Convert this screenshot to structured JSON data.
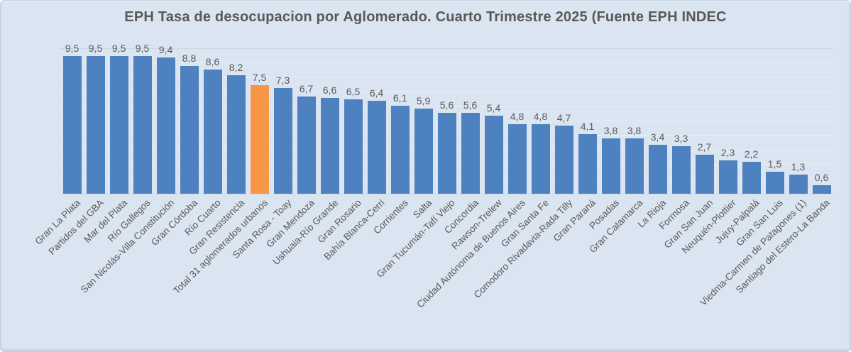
{
  "chart_data": {
    "type": "bar",
    "title": "EPH Tasa de desocupacion por Aglomerado. Cuarto Trimestre 2025 (Fuente EPH INDEC",
    "categories": [
      "Gran La Plata",
      "Partidos del GBA",
      "Mar del Plata",
      "Río Gallegos",
      "San Nicolás-Villa Constitución",
      "Gran Córdoba",
      "Río Cuarto",
      "Gran Resistencia",
      "Total 31 aglomerados urbanos",
      "Santa Rosa - Toay",
      "Gran Mendoza",
      "Ushuaia-Río Grande",
      "Gran Rosario",
      "Bahía Blanca-Cerri",
      "Corrientes",
      "Salta",
      "Gran Tucumán-Tafí Viejo",
      "Concordia",
      "Rawson-Trelew",
      "Ciudad Autónoma de Buenos Aires",
      "Gran Santa Fe",
      "Comodoro Rivadavia-Rada Tilly",
      "Gran Paraná",
      "Posadas",
      "Gran Catamarca",
      "La Rioja",
      "Formosa",
      "Gran San Juan",
      "Neuquén-Plottier",
      "Jujuy-Palpalá",
      "Gran San Luis",
      "Viedma-Carmen de Patagones (1)",
      "Santiago del Estero-La Banda"
    ],
    "values": [
      9.5,
      9.5,
      9.5,
      9.5,
      9.4,
      8.8,
      8.6,
      8.2,
      7.5,
      7.3,
      6.7,
      6.6,
      6.5,
      6.4,
      6.1,
      5.9,
      5.6,
      5.6,
      5.4,
      4.8,
      4.8,
      4.7,
      4.1,
      3.8,
      3.8,
      3.4,
      3.3,
      2.7,
      2.3,
      2.2,
      1.5,
      1.3,
      0.6
    ],
    "value_labels": [
      "9,5",
      "9,5",
      "9,5",
      "9,5",
      "9,4",
      "8,8",
      "8,6",
      "8,2",
      "7,5",
      "7,3",
      "6,7",
      "6,6",
      "6,5",
      "6,4",
      "6,1",
      "5,9",
      "5,6",
      "5,6",
      "5,4",
      "4,8",
      "4,8",
      "4,7",
      "4,1",
      "3,8",
      "3,8",
      "3,4",
      "3,3",
      "2,7",
      "2,3",
      "2,2",
      "1,5",
      "1,3",
      "0,6"
    ],
    "highlight_index": 8,
    "highlight_category": "Total 31 aglomerados urbanos",
    "xlabel": "",
    "ylabel": "",
    "ylim": [
      0,
      10
    ],
    "grid": "horizontal gridlines every 1 unit, no y tick labels",
    "legend": "none",
    "category_label_rotation_deg": 45
  },
  "colors": {
    "bar": "#4d81c0",
    "highlight": "#f79646",
    "background": "#dbe5f1",
    "gridline": "#e9eef6",
    "text": "#595959"
  }
}
